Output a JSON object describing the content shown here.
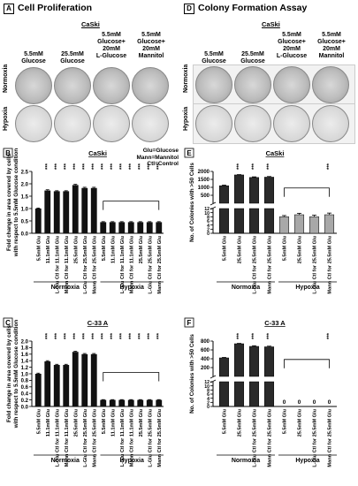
{
  "panels": {
    "A": {
      "letter": "A",
      "title": "Cell Proliferation",
      "cell_line": "CaSki",
      "columns": [
        "5.5mM\nGlucose",
        "25.5mM\nGlucose",
        "5.5mM\nGlucose+\n20mM\nL-Glucose",
        "5.5mM\nGlucose+\n20mM\nMannitol"
      ],
      "rows": [
        "Normoxia",
        "Hypoxia"
      ]
    },
    "D": {
      "letter": "D",
      "title": "Colony Formation Assay",
      "cell_line": "CaSki",
      "columns": [
        "5.5mM\nGlucose",
        "25.5mM\nGlucose",
        "5.5mM\nGlucose+\n20mM\nL-Glucose",
        "5.5mM\nGlucose+\n20mM\nMannitol"
      ],
      "rows": [
        "Normoxia",
        "Hypoxia"
      ]
    }
  },
  "legend": [
    "Glu=Glucose",
    "Mann=Mannitol",
    "Ctl=Control"
  ],
  "chart_data": [
    {
      "id": "B",
      "letter": "B",
      "type": "bar",
      "title": "CaSki",
      "ylabel": "Fold change in area covered by cells\nwith respect to 5.5mM Glucose condition",
      "ylim": [
        0,
        2.5
      ],
      "yticks": [
        0.0,
        0.5,
        1.0,
        1.5,
        2.0,
        2.5
      ],
      "categories": [
        "5.5mM Glu",
        "11.1mM Glu",
        "L-Glu Ctl for 11.1mM Glu",
        "Mann Ctl for 11.1mM Glu",
        "25.5mM Glu",
        "L-Glu Ctl for 25.5mM Glu",
        "Mann Ctl for 25.5mM Glu",
        "5.5mM Glu",
        "11.1mM Glu",
        "L-Glu Ctl for 11.1mM Glu",
        "Mann Ctl for 11.1mM Glu",
        "25.5mM Glu",
        "L-Glu Ctl for 25.5mM Glu",
        "Mann Ctl for 25.5mM Glu"
      ],
      "values": [
        1.0,
        1.73,
        1.7,
        1.7,
        1.95,
        1.83,
        1.83,
        0.45,
        0.45,
        0.45,
        0.45,
        0.45,
        0.45,
        0.45
      ],
      "errors": [
        0.02,
        0.03,
        0.02,
        0.02,
        0.03,
        0.03,
        0.03,
        0.02,
        0.02,
        0.02,
        0.02,
        0.02,
        0.02,
        0.02
      ],
      "groups": [
        "Normoxia",
        "Hypoxia"
      ],
      "sig": "***"
    },
    {
      "id": "C",
      "letter": "C",
      "type": "bar",
      "title": "C-33 A",
      "ylabel": "Fold change in area covered by cells\nwith respect to 5.5mM Glucose condition",
      "ylim": [
        0,
        2.0
      ],
      "yticks": [
        0.0,
        0.2,
        0.4,
        0.6,
        0.8,
        1.0,
        1.2,
        1.4,
        1.6,
        1.8,
        2.0
      ],
      "categories": [
        "5.5mM Glu",
        "11.1mM Glu",
        "L-Glu Ctl for 11.1mM Glu",
        "Mann Ctl for 11.1mM Glu",
        "25.5mM Glu",
        "L-Glu Ctl for 25.5mM Glu",
        "Mann Ctl for 25.5mM Glu",
        "5.5mM Glu",
        "11.1mM Glu",
        "L-Glu Ctl for 11.1mM Glu",
        "Mann Ctl for 11.1mM Glu",
        "25.5mM Glu",
        "L-Glu Ctl for 25.5mM Glu",
        "Mann Ctl for 25.5mM Glu"
      ],
      "values": [
        1.0,
        1.38,
        1.27,
        1.27,
        1.67,
        1.6,
        1.6,
        0.2,
        0.2,
        0.2,
        0.2,
        0.2,
        0.2,
        0.2
      ],
      "errors": [
        0.02,
        0.02,
        0.02,
        0.02,
        0.02,
        0.02,
        0.02,
        0.01,
        0.01,
        0.01,
        0.01,
        0.01,
        0.01,
        0.01
      ],
      "groups": [
        "Normoxia",
        "Hypoxia"
      ],
      "sig": "***"
    },
    {
      "id": "E",
      "letter": "E",
      "type": "bar",
      "title": "CaSki",
      "ylabel": "No. of Colonies with >50 Cells",
      "ylim": [
        0,
        2000
      ],
      "yticks": [
        0,
        2,
        4,
        6,
        8,
        10,
        12,
        500,
        1000,
        1500,
        2000
      ],
      "categories": [
        "5.5mM Glu",
        "25.5mM Glu",
        "L-Glu Ctl for 25.5mM Glu",
        "Mann Ctl for 25.5mM Glu",
        "5.5mM Glu",
        "25.5mM Glu",
        "L-Glu Ctl for 25.5mM Glu",
        "Mann Ctl for 25.5mM Glu"
      ],
      "values": [
        1100,
        1780,
        1620,
        1640,
        8,
        9,
        8,
        9
      ],
      "errors": [
        40,
        20,
        40,
        40,
        0.6,
        0.7,
        0.8,
        0.8
      ],
      "groups": [
        "Normoxia",
        "Hypoxia"
      ],
      "sig": "***"
    },
    {
      "id": "F",
      "letter": "F",
      "type": "bar",
      "title": "C-33 A",
      "ylabel": "No. of Colonies with >50 Cells",
      "ylim": [
        0,
        800
      ],
      "yticks": [
        0,
        2,
        4,
        6,
        8,
        10,
        12,
        200,
        400,
        600,
        800
      ],
      "categories": [
        "5.5mM Glu",
        "25.5mM Glu",
        "L-Glu Ctl for 25.5mM Glu",
        "Mann Ctl for 25.5mM Glu",
        "5.5mM Glu",
        "25.5mM Glu",
        "L-Glu Ctl for 25.5mM Glu",
        "Mann Ctl for 25.5mM Glu"
      ],
      "values": [
        420,
        740,
        680,
        670,
        0,
        0,
        0,
        0
      ],
      "errors": [
        10,
        8,
        15,
        15,
        0,
        0,
        0,
        0
      ],
      "zero_labels": [
        "0",
        "0",
        "0",
        "0"
      ],
      "groups": [
        "Normoxia",
        "Hypoxia"
      ],
      "sig": "***"
    }
  ]
}
